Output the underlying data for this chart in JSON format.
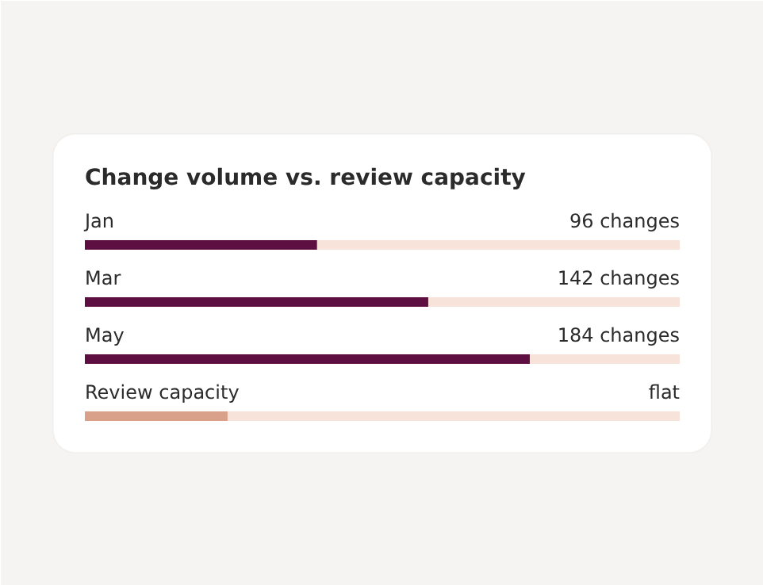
{
  "chart_data": {
    "type": "bar",
    "orientation": "horizontal",
    "title": "Change volume vs. review capacity",
    "categories": [
      "Jan",
      "Mar",
      "May",
      "Review capacity"
    ],
    "values": [
      96,
      142,
      184,
      59
    ],
    "colors": [
      "#5c0f40",
      "#5c0f40",
      "#5c0f40",
      "#d9a08a"
    ],
    "value_labels": [
      "96 changes",
      "142 changes",
      "184 changes",
      "flat"
    ],
    "xlim": [
      0,
      246
    ]
  }
}
